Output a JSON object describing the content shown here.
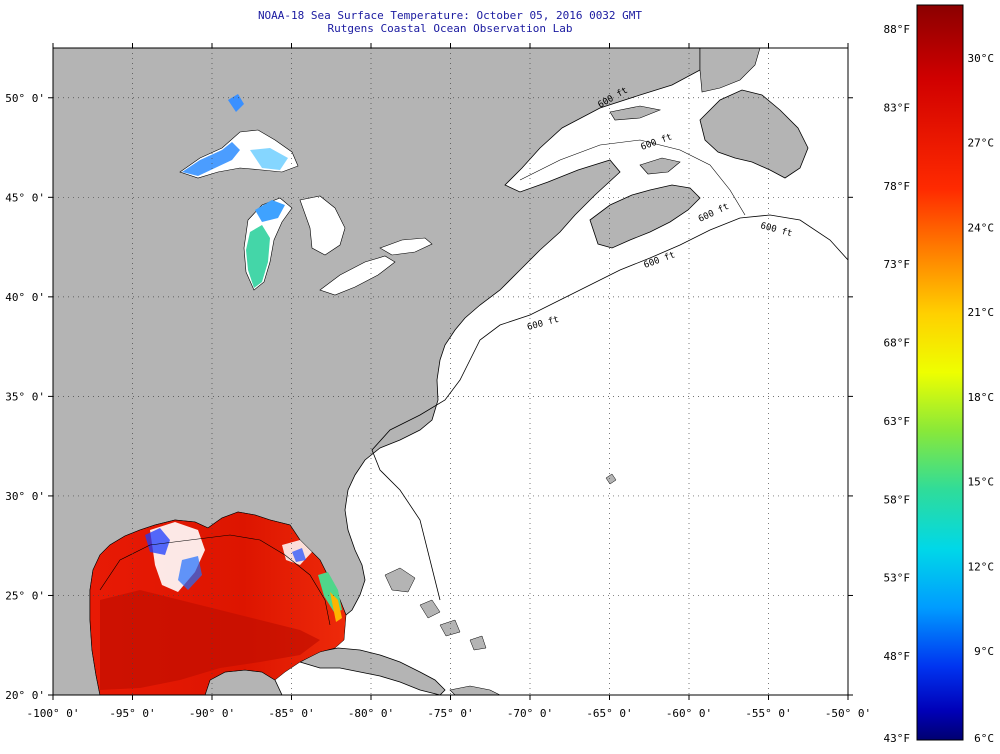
{
  "header": {
    "title": "NOAA-18 Sea Surface Temperature:  October 05, 2016 0032 GMT",
    "subtitle": "Rutgens Coastal Ocean Observation Lab"
  },
  "map": {
    "lon_range": [
      -100,
      -50
    ],
    "lat_range": [
      20,
      52.5
    ],
    "lat_labels": [
      "20° 0'",
      "25° 0'",
      "30° 0'",
      "35° 0'",
      "40° 0'",
      "45° 0'",
      "50° 0'"
    ],
    "lat_values": [
      20,
      25,
      30,
      35,
      40,
      45,
      50
    ],
    "lon_labels": [
      "-100° 0'",
      "-95° 0'",
      "-90° 0'",
      "-85° 0'",
      "-80° 0'",
      "-75° 0'",
      "-70° 0'",
      "-65° 0'",
      "-60° 0'",
      "-55° 0'",
      "-50° 0'"
    ],
    "lon_values": [
      -100,
      -95,
      -90,
      -85,
      -80,
      -75,
      -70,
      -65,
      -60,
      -55,
      -50
    ],
    "contour_labels": [
      "600 ft",
      "600 ft",
      "600 ft",
      "600 ft",
      "600 ft",
      "600 ft"
    ],
    "colors": {
      "land": "#b4b4b4",
      "ocean_no_data": "#ffffff",
      "grid": "#666666"
    }
  },
  "colorbar": {
    "fahrenheit_labels": [
      "88°F",
      "83°F",
      "78°F",
      "73°F",
      "68°F",
      "63°F",
      "58°F",
      "53°F",
      "48°F",
      "43°F"
    ],
    "celsius_labels": [
      "30°C",
      "27°C",
      "24°C",
      "21°C",
      "18°C",
      "15°C",
      "12°C",
      "9°C",
      "6°C"
    ],
    "range_c": [
      6,
      31
    ],
    "colors": [
      "#8b0000",
      "#e00000",
      "#ff3300",
      "#ff8800",
      "#ffcc00",
      "#ffff00",
      "#99ee22",
      "#33dd88",
      "#00e5e5",
      "#00aaff",
      "#0055ff",
      "#0000ff",
      "#0000aa",
      "#00006e"
    ]
  }
}
